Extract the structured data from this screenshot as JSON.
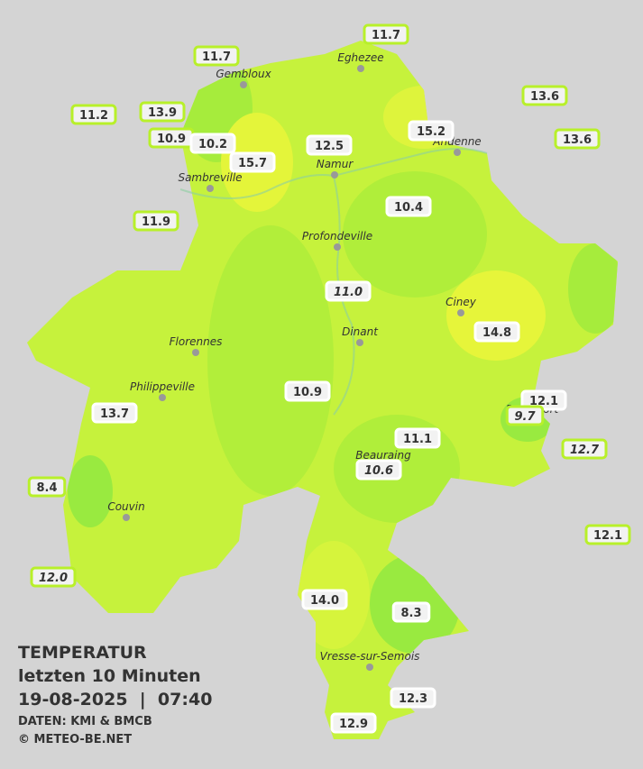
{
  "title": "TEMPERATUR",
  "subtitle": "letzten 10 Minuten",
  "datetime": "19-08-2025  |  07:40",
  "source": "DATEN: KMI & BMCB",
  "copyright": "© METEO-BE.NET",
  "cities": [
    "Eghezee",
    "Gembloux",
    "Andenne",
    "Namur",
    "Sambreville",
    "Profondeville",
    "Ciney",
    "Dinant",
    "Florennes",
    "Philippeville",
    "Rochefort",
    "Beauraing",
    "Couvin",
    "Vresse-sur-Semois"
  ],
  "stations": [
    "11.7",
    "11.7",
    "11.2",
    "13.9",
    "13.6",
    "15.2",
    "10.9",
    "10.2",
    "12.5",
    "13.6",
    "15.7",
    "10.4",
    "11.9",
    "11.0",
    "14.8",
    "10.9",
    "12.1",
    "13.7",
    "9.7",
    "11.1",
    "12.7",
    "10.6",
    "8.4",
    "12.1",
    "12.0",
    "14.0",
    "8.3",
    "12.3",
    "12.9"
  ]
}
